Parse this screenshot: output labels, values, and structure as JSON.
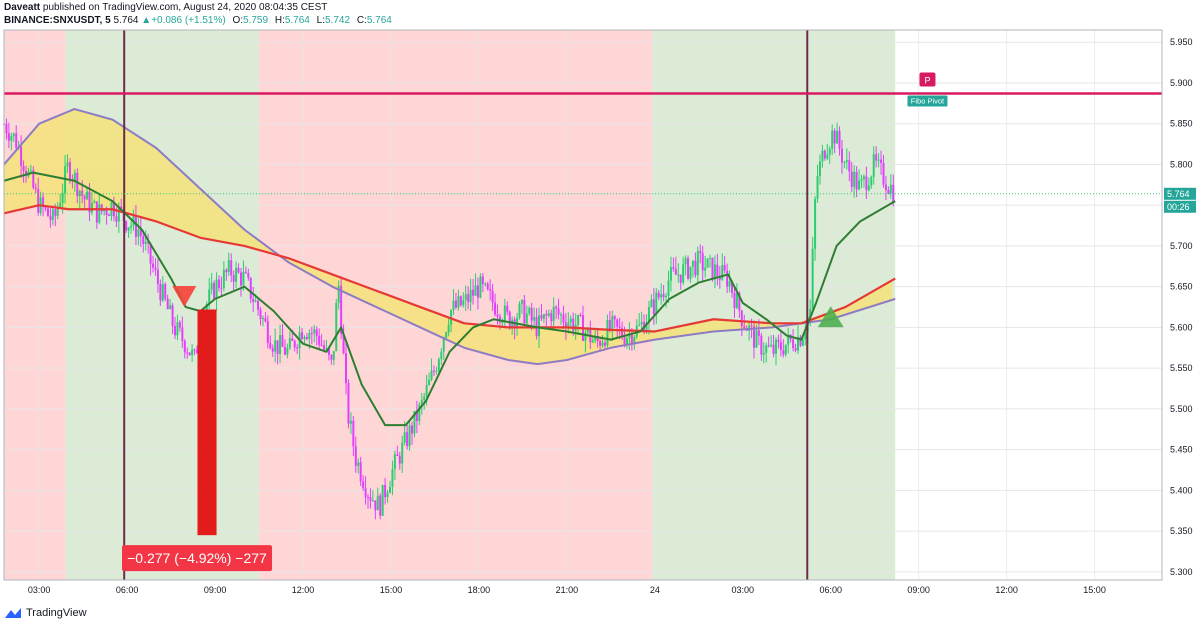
{
  "header": {
    "author": "Daveatt",
    "published_text": "published on TradingView.com, August 24, 2020 08:04:35 CEST"
  },
  "symbol_bar": {
    "symbol": "BINANCE:SNXUSDT, 5",
    "last": "5.764",
    "change": "+0.086 (+1.51%)",
    "o_label": "O:",
    "o": "5.759",
    "h_label": "H:",
    "h": "5.764",
    "l_label": "L:",
    "l": "5.742",
    "c_label": "C:",
    "c": "5.764"
  },
  "footer": {
    "brand": "TradingView"
  },
  "colors": {
    "candle_up": "#2ecc71",
    "candle_down": "#e040fb",
    "bg_red": "#ffd6d6",
    "bg_green": "#dcebd6",
    "fill": "#f5e27a",
    "ma_slow": "#8e7cc3",
    "ma_mid": "#e53935",
    "ma_fast": "#2e7d32",
    "pivot": "#d81b60",
    "measure": "#e21b1b"
  },
  "chart_data": {
    "type": "candlestick",
    "x_tick_labels": [
      "03:00",
      "06:00",
      "09:00",
      "12:00",
      "15:00",
      "18:00",
      "21:00",
      "24",
      "03:00",
      "06:00",
      "09:00",
      "12:00",
      "15:00"
    ],
    "x_ticks_hours": [
      3,
      6,
      9,
      12,
      15,
      18,
      21,
      24,
      27,
      30,
      33,
      36,
      39
    ],
    "x_range_hours": [
      1.8,
      41.3
    ],
    "y_tick_labels": [
      "5.950",
      "5.900",
      "5.850",
      "5.800",
      "5.750",
      "5.700",
      "5.650",
      "5.600",
      "5.550",
      "5.500",
      "5.450",
      "5.400",
      "5.350",
      "5.300"
    ],
    "y_range": [
      5.29,
      5.965
    ],
    "last_price": 5.764,
    "last_price_label": "5.764",
    "countdown_label": "00:26",
    "background_zones": [
      {
        "from": 1.8,
        "to": 3.9,
        "state": "red"
      },
      {
        "from": 3.9,
        "to": 10.5,
        "state": "green"
      },
      {
        "from": 10.5,
        "to": 23.9,
        "state": "red"
      },
      {
        "from": 23.9,
        "to": 32.2,
        "state": "green"
      }
    ],
    "vertical_markers_hours": [
      5.9,
      29.2
    ],
    "pivot_line": {
      "price": 5.887,
      "label": "Fibo Pivot",
      "marker": "P",
      "marker_hour": 33.3
    },
    "measure": {
      "from_hour": 8.4,
      "to_hour": 9.05,
      "top": 5.622,
      "bottom": 5.345,
      "label": "−0.277 (−4.92%) −277"
    },
    "signals": [
      {
        "type": "sell",
        "hour": 7.95,
        "price": 5.63
      },
      {
        "type": "buy",
        "hour": 30.0,
        "price": 5.61
      }
    ],
    "price_path": [
      [
        1.8,
        5.85
      ],
      [
        2.2,
        5.83
      ],
      [
        2.7,
        5.78
      ],
      [
        3.0,
        5.75
      ],
      [
        3.5,
        5.73
      ],
      [
        4.0,
        5.8
      ],
      [
        4.5,
        5.76
      ],
      [
        5.0,
        5.74
      ],
      [
        5.5,
        5.75
      ],
      [
        6.0,
        5.73
      ],
      [
        6.4,
        5.72
      ],
      [
        6.8,
        5.68
      ],
      [
        7.3,
        5.63
      ],
      [
        7.6,
        5.6
      ],
      [
        8.0,
        5.58
      ],
      [
        8.3,
        5.56
      ],
      [
        8.6,
        5.62
      ],
      [
        9.0,
        5.65
      ],
      [
        9.5,
        5.67
      ],
      [
        10.0,
        5.66
      ],
      [
        10.5,
        5.62
      ],
      [
        11.0,
        5.58
      ],
      [
        11.5,
        5.57
      ],
      [
        12.0,
        5.6
      ],
      [
        12.5,
        5.59
      ],
      [
        13.0,
        5.55
      ],
      [
        13.2,
        5.66
      ],
      [
        13.5,
        5.5
      ],
      [
        13.8,
        5.44
      ],
      [
        14.2,
        5.4
      ],
      [
        14.6,
        5.38
      ],
      [
        15.0,
        5.42
      ],
      [
        15.5,
        5.46
      ],
      [
        16.0,
        5.5
      ],
      [
        16.5,
        5.55
      ],
      [
        17.0,
        5.62
      ],
      [
        17.5,
        5.63
      ],
      [
        18.0,
        5.65
      ],
      [
        18.5,
        5.63
      ],
      [
        19.0,
        5.61
      ],
      [
        19.5,
        5.62
      ],
      [
        20.0,
        5.6
      ],
      [
        20.5,
        5.62
      ],
      [
        21.0,
        5.61
      ],
      [
        21.5,
        5.6
      ],
      [
        22.0,
        5.58
      ],
      [
        22.5,
        5.6
      ],
      [
        23.0,
        5.59
      ],
      [
        23.5,
        5.6
      ],
      [
        24.0,
        5.63
      ],
      [
        24.5,
        5.66
      ],
      [
        25.0,
        5.67
      ],
      [
        25.5,
        5.68
      ],
      [
        26.0,
        5.67
      ],
      [
        26.5,
        5.66
      ],
      [
        27.0,
        5.61
      ],
      [
        27.5,
        5.58
      ],
      [
        28.0,
        5.57
      ],
      [
        28.5,
        5.58
      ],
      [
        29.0,
        5.59
      ],
      [
        29.3,
        5.62
      ],
      [
        29.5,
        5.78
      ],
      [
        29.8,
        5.82
      ],
      [
        30.1,
        5.84
      ],
      [
        30.5,
        5.8
      ],
      [
        31.0,
        5.77
      ],
      [
        31.5,
        5.8
      ],
      [
        32.2,
        5.764
      ]
    ],
    "ma_slow_path": [
      [
        1.8,
        5.8
      ],
      [
        3.0,
        5.85
      ],
      [
        4.2,
        5.868
      ],
      [
        5.5,
        5.855
      ],
      [
        7.0,
        5.82
      ],
      [
        8.5,
        5.77
      ],
      [
        10.0,
        5.72
      ],
      [
        11.5,
        5.68
      ],
      [
        13.0,
        5.65
      ],
      [
        14.5,
        5.625
      ],
      [
        16.0,
        5.6
      ],
      [
        17.5,
        5.575
      ],
      [
        19.0,
        5.56
      ],
      [
        20.0,
        5.555
      ],
      [
        21.0,
        5.56
      ],
      [
        22.5,
        5.575
      ],
      [
        24.0,
        5.585
      ],
      [
        26.0,
        5.595
      ],
      [
        28.0,
        5.6
      ],
      [
        30.0,
        5.61
      ],
      [
        32.2,
        5.635
      ]
    ],
    "ma_mid_path": [
      [
        1.8,
        5.74
      ],
      [
        3.0,
        5.75
      ],
      [
        4.0,
        5.745
      ],
      [
        5.5,
        5.745
      ],
      [
        7.0,
        5.73
      ],
      [
        8.5,
        5.71
      ],
      [
        10.0,
        5.7
      ],
      [
        11.5,
        5.685
      ],
      [
        13.0,
        5.665
      ],
      [
        14.5,
        5.645
      ],
      [
        16.0,
        5.625
      ],
      [
        17.5,
        5.605
      ],
      [
        19.0,
        5.6
      ],
      [
        21.0,
        5.6
      ],
      [
        22.5,
        5.597
      ],
      [
        24.0,
        5.595
      ],
      [
        26.0,
        5.61
      ],
      [
        28.0,
        5.605
      ],
      [
        29.0,
        5.605
      ],
      [
        30.5,
        5.625
      ],
      [
        32.2,
        5.66
      ]
    ],
    "ma_fast_path": [
      [
        1.8,
        5.78
      ],
      [
        2.8,
        5.79
      ],
      [
        4.2,
        5.78
      ],
      [
        5.5,
        5.755
      ],
      [
        6.5,
        5.72
      ],
      [
        7.5,
        5.66
      ],
      [
        8.0,
        5.625
      ],
      [
        8.5,
        5.62
      ],
      [
        9.0,
        5.635
      ],
      [
        10.0,
        5.65
      ],
      [
        11.0,
        5.62
      ],
      [
        12.0,
        5.58
      ],
      [
        12.8,
        5.57
      ],
      [
        13.3,
        5.6
      ],
      [
        14.0,
        5.53
      ],
      [
        14.8,
        5.48
      ],
      [
        15.5,
        5.48
      ],
      [
        16.2,
        5.51
      ],
      [
        17.0,
        5.57
      ],
      [
        17.8,
        5.6
      ],
      [
        18.5,
        5.61
      ],
      [
        20.0,
        5.6
      ],
      [
        21.0,
        5.595
      ],
      [
        22.5,
        5.585
      ],
      [
        23.5,
        5.595
      ],
      [
        24.5,
        5.635
      ],
      [
        25.5,
        5.655
      ],
      [
        26.5,
        5.665
      ],
      [
        27.0,
        5.63
      ],
      [
        27.8,
        5.61
      ],
      [
        28.5,
        5.59
      ],
      [
        29.0,
        5.585
      ],
      [
        29.5,
        5.63
      ],
      [
        30.2,
        5.7
      ],
      [
        31.0,
        5.73
      ],
      [
        32.2,
        5.755
      ]
    ]
  }
}
